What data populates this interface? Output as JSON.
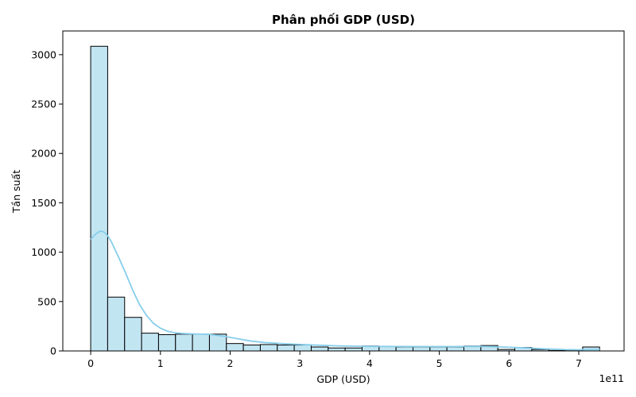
{
  "chart_data": {
    "type": "bar",
    "title": "Phân phối GDP (USD)",
    "xlabel": "GDP (USD)",
    "ylabel": "Tần suất",
    "x_scale_label": "1e11",
    "xlim": [
      -0.4,
      7.65
    ],
    "ylim": [
      0,
      3240
    ],
    "x_ticks": [
      {
        "value": 0,
        "label": "0"
      },
      {
        "value": 1,
        "label": "1"
      },
      {
        "value": 2,
        "label": "2"
      },
      {
        "value": 3,
        "label": "3"
      },
      {
        "value": 4,
        "label": "4"
      },
      {
        "value": 5,
        "label": "5"
      },
      {
        "value": 6,
        "label": "6"
      },
      {
        "value": 7,
        "label": "7"
      }
    ],
    "y_ticks": [
      {
        "value": 0,
        "label": "0"
      },
      {
        "value": 500,
        "label": "500"
      },
      {
        "value": 1000,
        "label": "1000"
      },
      {
        "value": 1500,
        "label": "1500"
      },
      {
        "value": 2000,
        "label": "2000"
      },
      {
        "value": 2500,
        "label": "2500"
      },
      {
        "value": 3000,
        "label": "3000"
      }
    ],
    "bin_start": 0,
    "bin_width": 0.2433,
    "values": [
      3085,
      545,
      340,
      180,
      165,
      170,
      170,
      170,
      75,
      60,
      65,
      60,
      60,
      40,
      30,
      30,
      50,
      45,
      40,
      40,
      40,
      40,
      50,
      55,
      15,
      35,
      15,
      5,
      10,
      40
    ],
    "kde": [
      [
        0.0,
        1130
      ],
      [
        0.05,
        1170
      ],
      [
        0.1,
        1200
      ],
      [
        0.15,
        1215
      ],
      [
        0.2,
        1200
      ],
      [
        0.25,
        1160
      ],
      [
        0.3,
        1100
      ],
      [
        0.4,
        950
      ],
      [
        0.5,
        790
      ],
      [
        0.6,
        620
      ],
      [
        0.7,
        470
      ],
      [
        0.8,
        360
      ],
      [
        0.9,
        280
      ],
      [
        1.0,
        230
      ],
      [
        1.1,
        200
      ],
      [
        1.2,
        185
      ],
      [
        1.3,
        178
      ],
      [
        1.5,
        172
      ],
      [
        1.7,
        168
      ],
      [
        1.9,
        150
      ],
      [
        2.1,
        125
      ],
      [
        2.3,
        100
      ],
      [
        2.5,
        85
      ],
      [
        2.8,
        72
      ],
      [
        3.2,
        60
      ],
      [
        3.6,
        50
      ],
      [
        4.0,
        46
      ],
      [
        4.4,
        45
      ],
      [
        4.8,
        44
      ],
      [
        5.2,
        44
      ],
      [
        5.6,
        46
      ],
      [
        5.9,
        40
      ],
      [
        6.2,
        32
      ],
      [
        6.5,
        22
      ],
      [
        6.8,
        14
      ],
      [
        7.0,
        12
      ],
      [
        7.3,
        15
      ]
    ],
    "bar_color": "#c2e5f2",
    "kde_color": "#87ceeb",
    "grid": false,
    "legend": "none"
  }
}
